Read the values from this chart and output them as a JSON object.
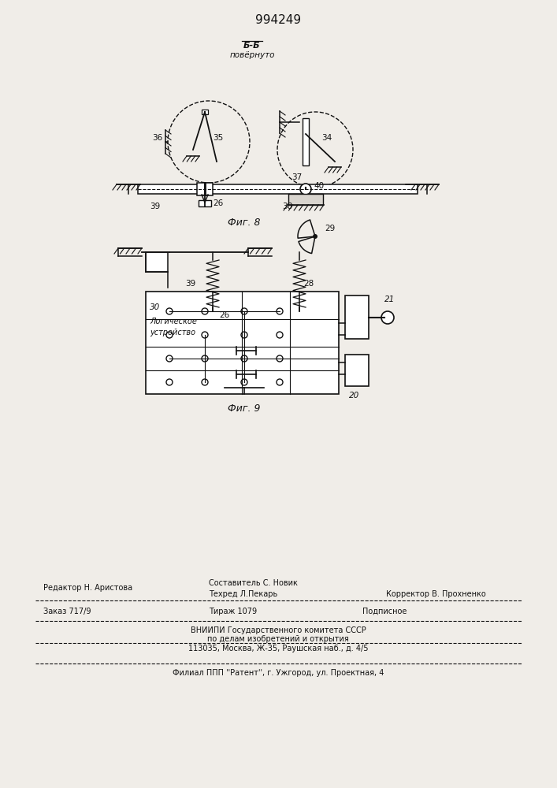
{
  "title": "994249",
  "bg_color": "#f0ede8",
  "line_color": "#111111",
  "text_color": "#111111",
  "fig8_label": "Фиг. 8",
  "fig9_label": "Фиг. 9",
  "section_top": "Б-Б",
  "section_bot": "повёрнуто",
  "label_35": "35",
  "label_36": "36",
  "label_34": "34",
  "label_37": "37",
  "label_26": "26",
  "label_38": "38",
  "label_39": "39",
  "label_40": "40",
  "label_28": "28",
  "label_29": "29",
  "label_30": "30",
  "label_log": "Логическое",
  "label_ustr": "устройство",
  "label_20": "20",
  "label_21": "21",
  "footer1a": "Редактор Н. Аристова",
  "footer1b": "Составитель С. Новик",
  "footer1c": "Техред Л.Пекарь",
  "footer1d": "Корректор В. Прохненко",
  "footer2a": "Заказ 717/9",
  "footer2b": "Тираж 1079",
  "footer2c": "Подписное",
  "footer3a": "ВНИИПИ Государственного комитета СССР",
  "footer3b": "по делам изобретений и открытия",
  "footer3c": "113035, Москва, Ж-35, Раушская наб., д. 4/5",
  "footer4": "Филиал ППП ''Pатент'', г. Ужгород, ул. Проектная, 4"
}
